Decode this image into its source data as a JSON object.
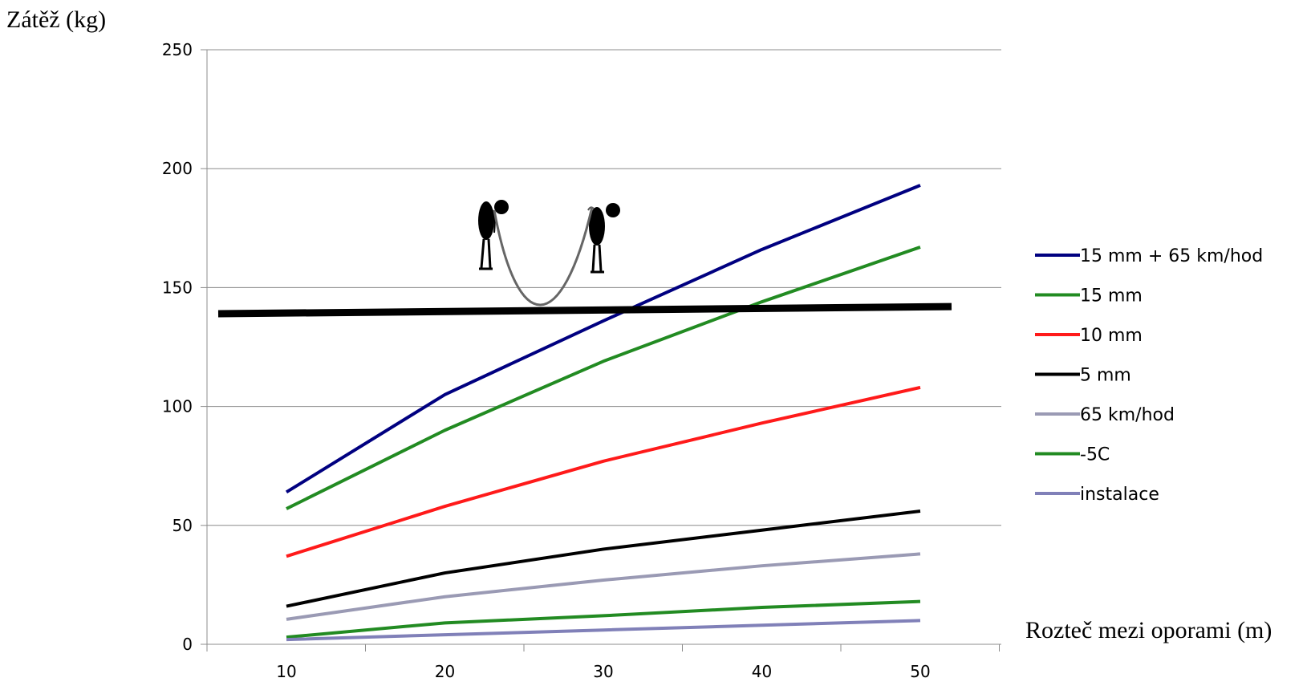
{
  "chart_data": {
    "type": "line",
    "ylabel": "Zátěž (kg)",
    "xlabel": "Rozteč mezi oporami (m)",
    "x": [
      10,
      20,
      30,
      40,
      50
    ],
    "xticks": [
      "10",
      "20",
      "30",
      "40",
      "50"
    ],
    "yticks": [
      "0",
      "50",
      "100",
      "150",
      "200",
      "250"
    ],
    "ylim": [
      0,
      250
    ],
    "grid": "horizontal",
    "legend_position": "right",
    "series": [
      {
        "name": "15 mm + 65 km/hod",
        "color": "#000080",
        "values": [
          64,
          105,
          136,
          166,
          193
        ]
      },
      {
        "name": "15 mm",
        "color": "#228B22",
        "values": [
          57,
          90,
          119,
          144,
          167
        ]
      },
      {
        "name": "10 mm",
        "color": "#ff1a1a",
        "values": [
          37,
          58,
          77,
          93,
          108
        ]
      },
      {
        "name": "5 mm",
        "color": "#000000",
        "values": [
          16,
          30,
          40,
          48,
          56
        ]
      },
      {
        "name": "65 km/hod",
        "color": "#9a9ab4",
        "values": [
          10.5,
          20,
          27,
          33,
          38
        ]
      },
      {
        "name": " -5C",
        "color": "#228B22",
        "values": [
          3,
          9,
          12,
          15.5,
          18
        ]
      },
      {
        "name": "instalace",
        "color": "#8080b8",
        "values": [
          2,
          4,
          6,
          8,
          10
        ]
      }
    ],
    "reference_line": {
      "color": "#000000",
      "values": [
        139,
        142
      ]
    }
  }
}
